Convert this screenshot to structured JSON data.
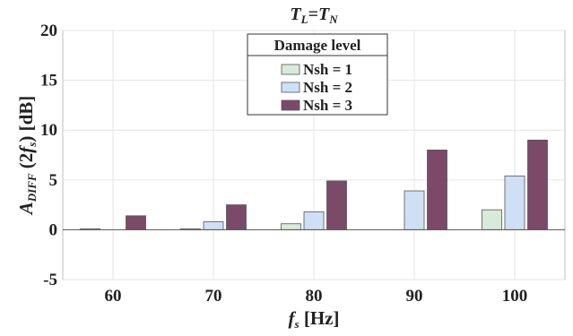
{
  "chart_data": {
    "type": "bar",
    "title": {
      "main_a": "T",
      "sub_a": "L",
      "eq": "=",
      "main_b": "T",
      "sub_b": "N"
    },
    "xlabel": {
      "main": "f",
      "sub": "s",
      "unit": " [Hz]"
    },
    "ylabel": {
      "main": "A",
      "sub": "DIFF",
      "mid": " (2",
      "f": "f",
      "fsub": "s",
      "unit": ") [dB]"
    },
    "categories": [
      "60",
      "70",
      "80",
      "90",
      "100"
    ],
    "ylim": [
      -5,
      20
    ],
    "yticks": [
      "20",
      "15",
      "10",
      "5",
      "0",
      "-5"
    ],
    "ytick_values": [
      20,
      15,
      10,
      5,
      0,
      -5
    ],
    "grid": true,
    "legend": {
      "title": "Damage level",
      "placement": "top-center"
    },
    "series": [
      {
        "name": "Nsh = 1",
        "color": "#d8eadb",
        "values": [
          0.1,
          0.1,
          0.6,
          0.0,
          2.0
        ]
      },
      {
        "name": "Nsh = 2",
        "color": "#cfe0f6",
        "values": [
          0.0,
          0.8,
          1.8,
          3.9,
          5.4
        ]
      },
      {
        "name": "Nsh = 3",
        "color": "#7b4a68",
        "values": [
          1.4,
          2.5,
          4.9,
          8.0,
          9.0
        ]
      }
    ]
  }
}
